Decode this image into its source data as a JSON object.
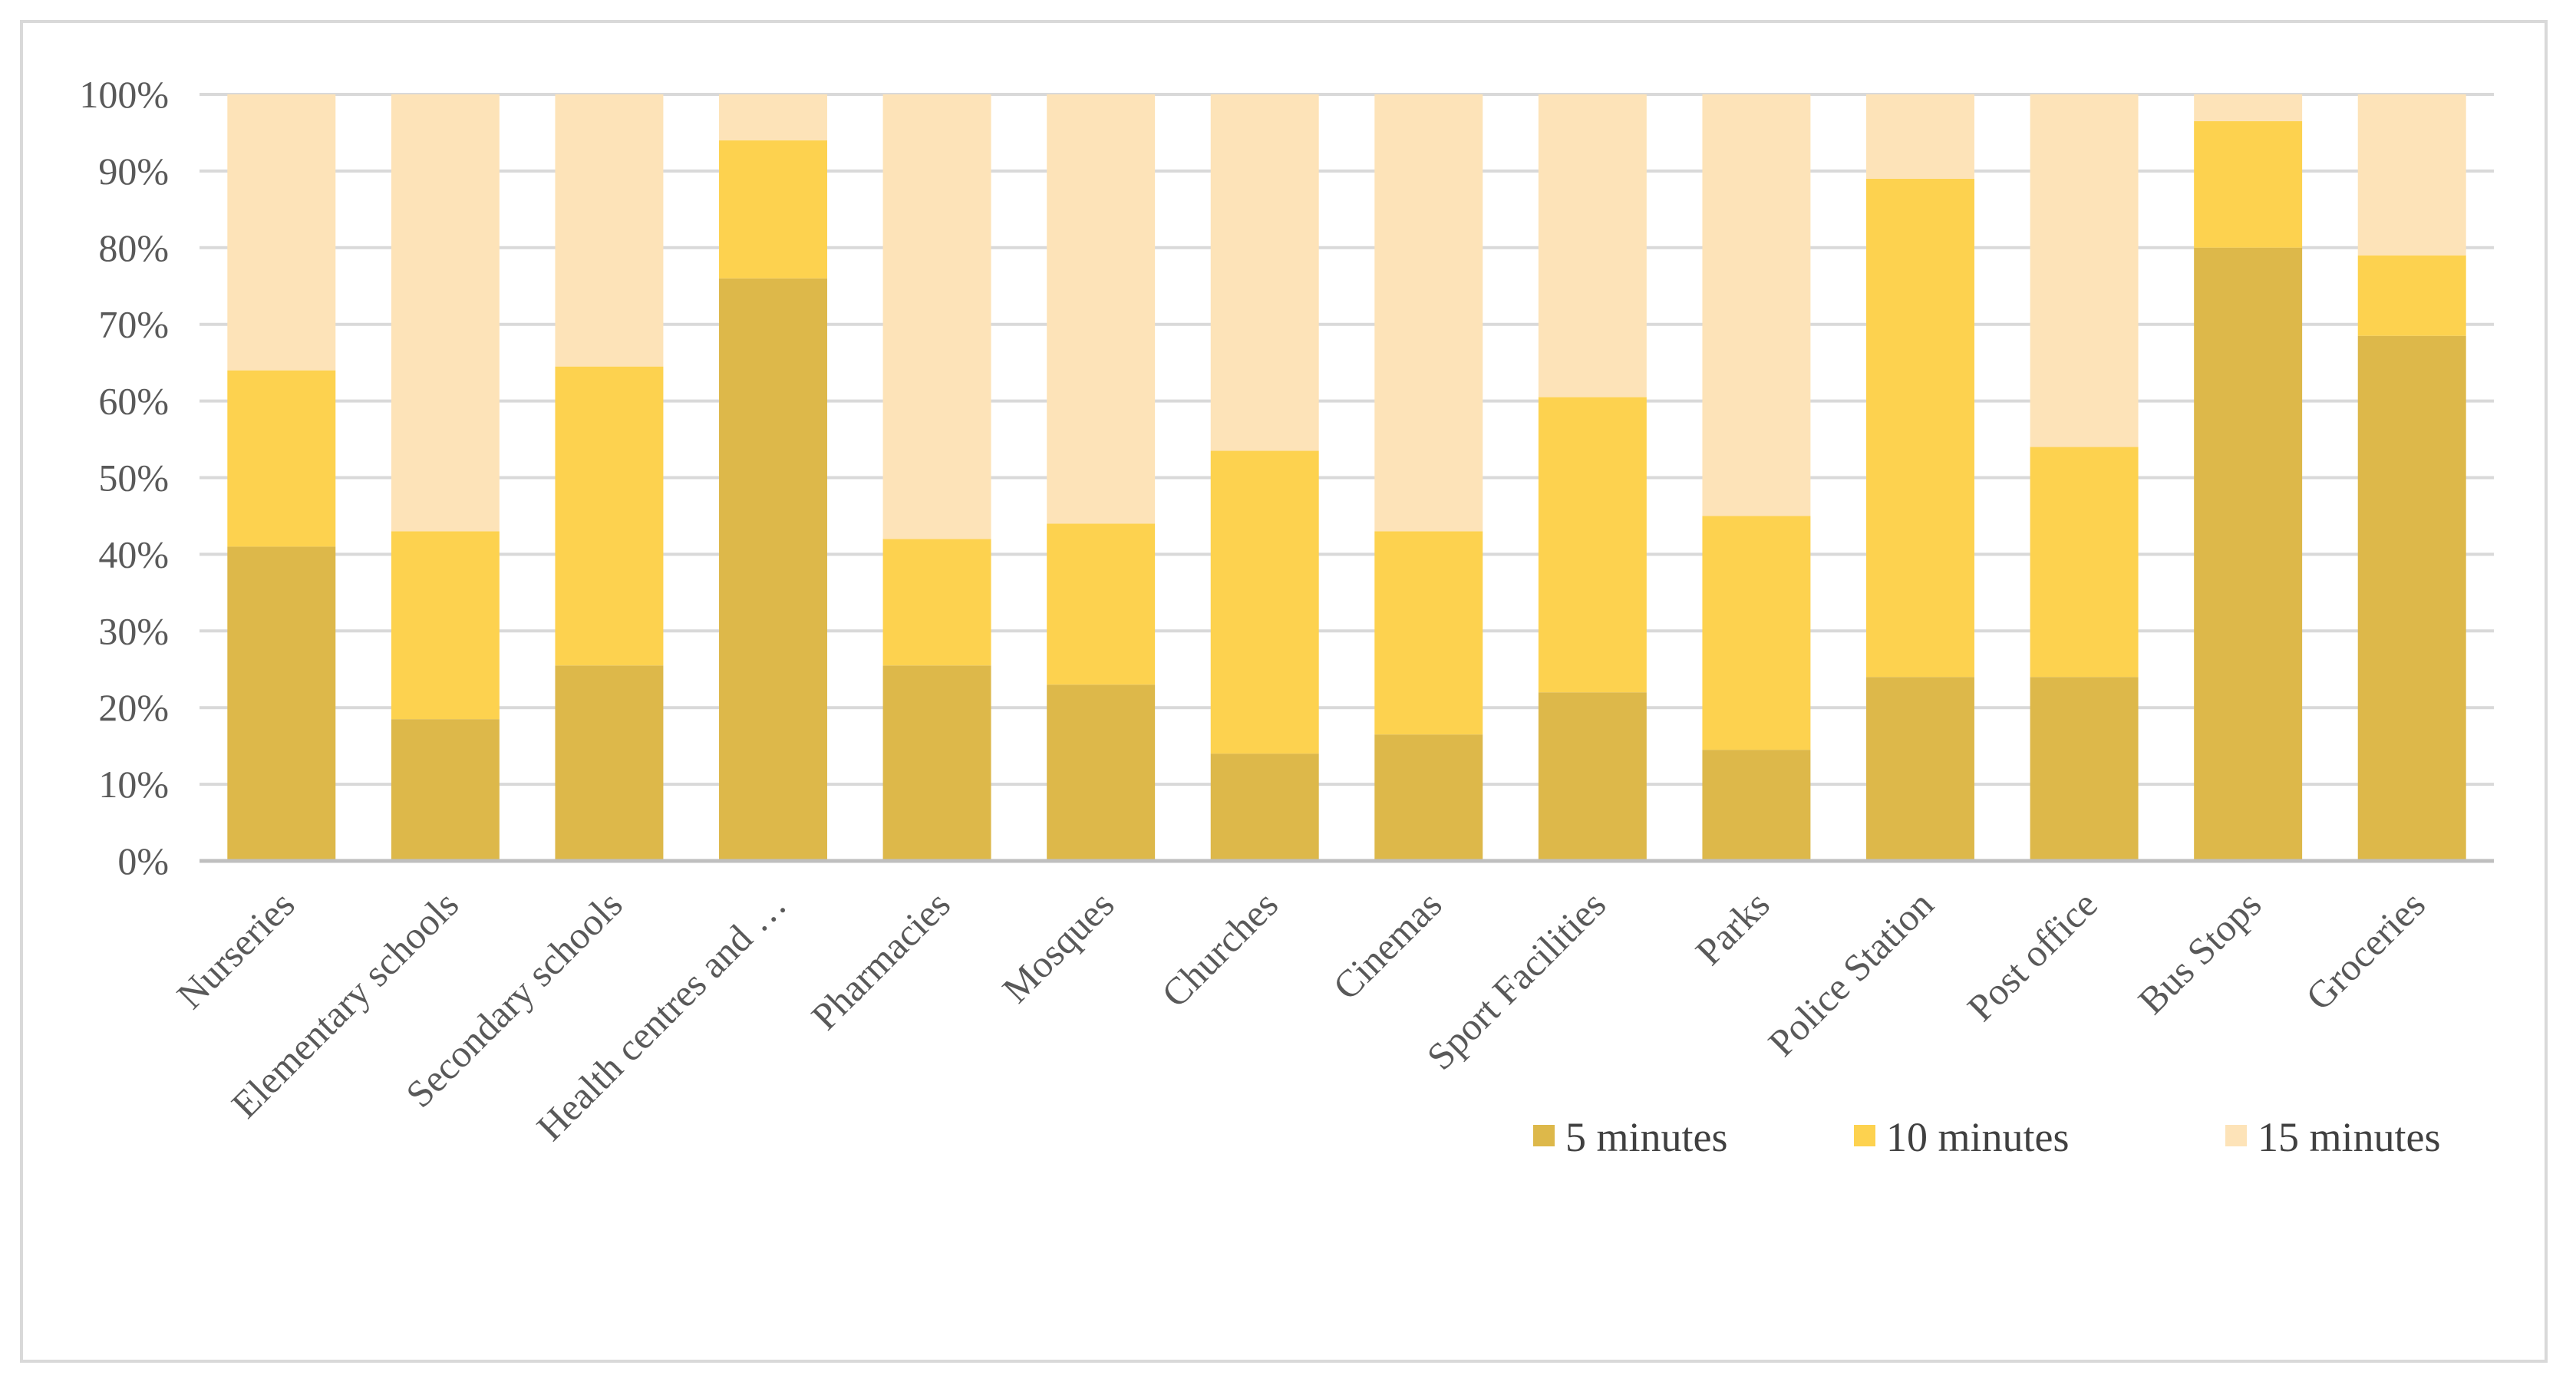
{
  "chart_data": {
    "type": "bar",
    "stacked": "percent",
    "title": "",
    "xlabel": "",
    "ylabel": "",
    "ylim": [
      0,
      100
    ],
    "y_ticks": [
      "0%",
      "10%",
      "20%",
      "30%",
      "40%",
      "50%",
      "60%",
      "70%",
      "80%",
      "90%",
      "100%"
    ],
    "grid": true,
    "legend_position": "bottom-right",
    "categories": [
      "Nurseries",
      "Elementary schools",
      "Secondary schools",
      "Health centres and …",
      "Pharmacies",
      "Mosques",
      "Churches",
      "Cinemas",
      "Sport Facilities",
      "Parks",
      "Police Station",
      "Post office",
      "Bus Stops",
      "Groceries"
    ],
    "series": [
      {
        "name": "5 minutes",
        "color": "#ddb84a",
        "values": [
          41,
          18.5,
          25.5,
          76,
          25.5,
          23,
          14,
          16.5,
          22,
          14.5,
          24,
          24,
          80,
          68.5
        ]
      },
      {
        "name": "10 minutes",
        "color": "#fdd24f",
        "values": [
          23,
          24.5,
          39,
          18,
          16.5,
          21,
          39.5,
          26.5,
          38.5,
          30.5,
          65,
          30,
          16.5,
          10.5
        ]
      },
      {
        "name": "15 minutes",
        "color": "#fde3b8",
        "values": [
          36,
          57,
          35.5,
          6,
          58,
          56,
          46.5,
          57,
          39.5,
          55,
          11,
          46,
          3.5,
          21
        ]
      }
    ]
  }
}
